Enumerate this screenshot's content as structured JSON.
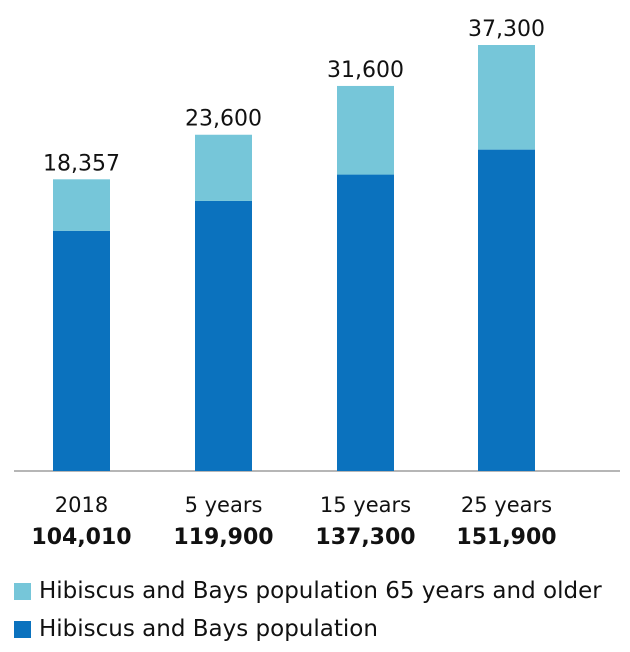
{
  "chart_data": {
    "type": "bar",
    "stacked": true,
    "categories": [
      "2018",
      "5 years",
      "15 years",
      "25 years"
    ],
    "category_totals": [
      "104,010",
      "119,900",
      "137,300",
      "151,900"
    ],
    "top_labels": [
      "18,357",
      "23,600",
      "31,600",
      "37,300"
    ],
    "series": [
      {
        "name": "Hibiscus and Bays population",
        "values": [
          85653,
          96300,
          105700,
          114600
        ],
        "color": "#0b72be"
      },
      {
        "name": "Hibiscus and Bays population 65 years and older",
        "values": [
          18357,
          23600,
          31600,
          37300
        ],
        "color": "#76c6d9"
      }
    ],
    "ylim": [
      0,
      160000
    ],
    "grid": false,
    "legend_position": "bottom-left"
  }
}
